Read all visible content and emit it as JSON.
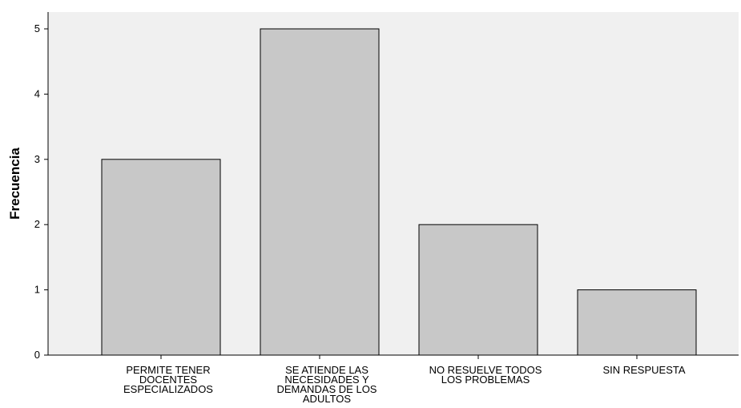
{
  "chart_data": {
    "type": "bar",
    "ylabel": "Frecuencia",
    "xlabel": "",
    "ylim": [
      0,
      5
    ],
    "yticks": [
      "0",
      "1",
      "2",
      "3",
      "4",
      "5"
    ],
    "categories": [
      [
        "PERMITE TENER",
        "DOCENTES",
        "ESPECIALIZADOS"
      ],
      [
        "SE ATIENDE LAS",
        "NECESIDADES Y",
        "DEMANDAS DE LOS",
        "ADULTOS"
      ],
      [
        "NO RESUELVE TODOS",
        "LOS PROBLEMAS"
      ],
      [
        "SIN RESPUESTA"
      ]
    ],
    "values": [
      3,
      5,
      2,
      1
    ],
    "colors": {
      "plot_background": "#f0f0f0",
      "bar_fill": "#c8c8c8",
      "bar_stroke": "#000000"
    },
    "grid": false
  }
}
